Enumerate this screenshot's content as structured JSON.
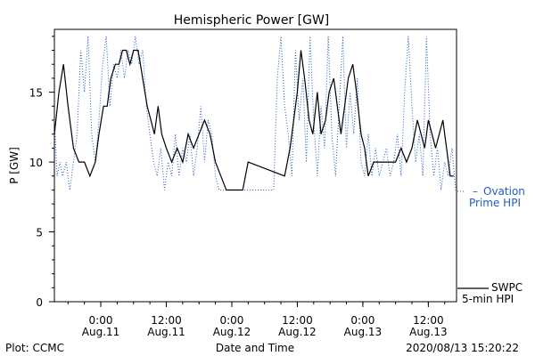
{
  "chart_data": {
    "type": "line",
    "title": "Hemispheric Power [GW]",
    "xlabel": "Date and Time",
    "ylabel": "P [GW]",
    "ylim": [
      0,
      19.5
    ],
    "xlim": [
      "2020-08-10 15:30",
      "2020-08-13 17:10"
    ],
    "y_ticks": [
      0,
      5,
      10,
      15
    ],
    "x_ticks": [
      {
        "time": "2020-08-11 00:00",
        "line1": "0:00",
        "line2": "Aug.11"
      },
      {
        "time": "2020-08-11 12:00",
        "line1": "12:00",
        "line2": "Aug.11"
      },
      {
        "time": "2020-08-12 00:00",
        "line1": "0:00",
        "line2": "Aug.12"
      },
      {
        "time": "2020-08-12 12:00",
        "line1": "12:00",
        "line2": "Aug.12"
      },
      {
        "time": "2020-08-13 00:00",
        "line1": "0:00",
        "line2": "Aug.13"
      },
      {
        "time": "2020-08-13 12:00",
        "line1": "12:00",
        "line2": "Aug.13"
      }
    ],
    "grid": false,
    "legend_position": "right",
    "series": [
      {
        "name": "SWPC 5-min HPI",
        "legend_line1": "SWPC",
        "legend_line2": "5-min HPI",
        "style": "solid",
        "color": "#000000",
        "points": [
          [
            "2020-08-10 15:30",
            12
          ],
          [
            "2020-08-10 16:20",
            15
          ],
          [
            "2020-08-10 17:10",
            17
          ],
          [
            "2020-08-10 18:00",
            14
          ],
          [
            "2020-08-10 19:00",
            11
          ],
          [
            "2020-08-10 20:00",
            10
          ],
          [
            "2020-08-10 21:00",
            10
          ],
          [
            "2020-08-10 22:00",
            9
          ],
          [
            "2020-08-10 23:00",
            10
          ],
          [
            "2020-08-10 23:40",
            12
          ],
          [
            "2020-08-11 00:30",
            14
          ],
          [
            "2020-08-11 01:10",
            14
          ],
          [
            "2020-08-11 01:50",
            16
          ],
          [
            "2020-08-11 02:40",
            17
          ],
          [
            "2020-08-11 03:20",
            17
          ],
          [
            "2020-08-11 04:00",
            18
          ],
          [
            "2020-08-11 04:40",
            18
          ],
          [
            "2020-08-11 05:20",
            17
          ],
          [
            "2020-08-11 06:00",
            18
          ],
          [
            "2020-08-11 06:50",
            18
          ],
          [
            "2020-08-11 07:40",
            16
          ],
          [
            "2020-08-11 08:30",
            14
          ],
          [
            "2020-08-11 09:10",
            13
          ],
          [
            "2020-08-11 09:50",
            12
          ],
          [
            "2020-08-11 10:30",
            14
          ],
          [
            "2020-08-11 11:10",
            12
          ],
          [
            "2020-08-11 12:00",
            11
          ],
          [
            "2020-08-11 13:00",
            10
          ],
          [
            "2020-08-11 14:00",
            11
          ],
          [
            "2020-08-11 15:00",
            10
          ],
          [
            "2020-08-11 16:00",
            12
          ],
          [
            "2020-08-11 17:00",
            11
          ],
          [
            "2020-08-11 18:00",
            12
          ],
          [
            "2020-08-11 19:00",
            13
          ],
          [
            "2020-08-11 20:00",
            12
          ],
          [
            "2020-08-11 21:00",
            10
          ],
          [
            "2020-08-11 22:00",
            9
          ],
          [
            "2020-08-11 23:00",
            8
          ],
          [
            "2020-08-12 00:00",
            8
          ],
          [
            "2020-08-12 01:00",
            8
          ],
          [
            "2020-08-12 02:00",
            8
          ],
          [
            "2020-08-12 03:00",
            10
          ],
          [
            "2020-08-12 09:40",
            9
          ],
          [
            "2020-08-12 10:40",
            11
          ],
          [
            "2020-08-12 11:20",
            13
          ],
          [
            "2020-08-12 12:00",
            15
          ],
          [
            "2020-08-12 12:40",
            18
          ],
          [
            "2020-08-12 13:20",
            16
          ],
          [
            "2020-08-12 14:10",
            13
          ],
          [
            "2020-08-12 14:50",
            12
          ],
          [
            "2020-08-12 15:40",
            15
          ],
          [
            "2020-08-12 16:20",
            12
          ],
          [
            "2020-08-12 17:10",
            13
          ],
          [
            "2020-08-12 17:50",
            15
          ],
          [
            "2020-08-12 18:40",
            16
          ],
          [
            "2020-08-12 19:20",
            14
          ],
          [
            "2020-08-12 20:00",
            12
          ],
          [
            "2020-08-12 20:40",
            14
          ],
          [
            "2020-08-12 21:20",
            16
          ],
          [
            "2020-08-12 22:10",
            17
          ],
          [
            "2020-08-12 22:50",
            15
          ],
          [
            "2020-08-12 23:40",
            12
          ],
          [
            "2020-08-13 00:20",
            11
          ],
          [
            "2020-08-13 01:00",
            9
          ],
          [
            "2020-08-13 02:00",
            10
          ],
          [
            "2020-08-13 03:00",
            10
          ],
          [
            "2020-08-13 04:00",
            10
          ],
          [
            "2020-08-13 05:00",
            10
          ],
          [
            "2020-08-13 06:00",
            10
          ],
          [
            "2020-08-13 07:00",
            11
          ],
          [
            "2020-08-13 08:00",
            10
          ],
          [
            "2020-08-13 09:00",
            11
          ],
          [
            "2020-08-13 10:00",
            13
          ],
          [
            "2020-08-13 10:40",
            12
          ],
          [
            "2020-08-13 11:20",
            11
          ],
          [
            "2020-08-13 12:00",
            13
          ],
          [
            "2020-08-13 12:40",
            12
          ],
          [
            "2020-08-13 13:20",
            11
          ],
          [
            "2020-08-13 14:00",
            12
          ],
          [
            "2020-08-13 14:40",
            13
          ],
          [
            "2020-08-13 15:20",
            11
          ],
          [
            "2020-08-13 16:00",
            9
          ],
          [
            "2020-08-13 16:40",
            9
          ]
        ]
      },
      {
        "name": "Ovation Prime HPI",
        "legend_line1": "Ovation",
        "legend_line2": "Prime HPI",
        "style": "dotted",
        "color": "#1f5fbf",
        "points": [
          [
            "2020-08-10 15:30",
            13
          ],
          [
            "2020-08-10 16:00",
            9
          ],
          [
            "2020-08-10 16:30",
            10
          ],
          [
            "2020-08-10 17:00",
            9
          ],
          [
            "2020-08-10 17:40",
            10
          ],
          [
            "2020-08-10 18:20",
            8
          ],
          [
            "2020-08-10 19:00",
            10
          ],
          [
            "2020-08-10 19:40",
            12
          ],
          [
            "2020-08-10 20:20",
            18
          ],
          [
            "2020-08-10 21:00",
            15
          ],
          [
            "2020-08-10 21:40",
            19
          ],
          [
            "2020-08-10 22:20",
            12
          ],
          [
            "2020-08-10 23:00",
            10
          ],
          [
            "2020-08-10 23:40",
            13
          ],
          [
            "2020-08-11 00:20",
            17
          ],
          [
            "2020-08-11 01:00",
            19
          ],
          [
            "2020-08-11 01:40",
            14
          ],
          [
            "2020-08-11 02:20",
            17
          ],
          [
            "2020-08-11 03:00",
            16
          ],
          [
            "2020-08-11 03:40",
            18
          ],
          [
            "2020-08-11 04:20",
            16
          ],
          [
            "2020-08-11 05:00",
            18
          ],
          [
            "2020-08-11 05:40",
            17
          ],
          [
            "2020-08-11 06:20",
            19
          ],
          [
            "2020-08-11 07:00",
            17
          ],
          [
            "2020-08-11 07:40",
            18
          ],
          [
            "2020-08-11 08:20",
            14
          ],
          [
            "2020-08-11 09:00",
            12
          ],
          [
            "2020-08-11 09:40",
            10
          ],
          [
            "2020-08-11 10:20",
            9
          ],
          [
            "2020-08-11 11:00",
            11
          ],
          [
            "2020-08-11 11:40",
            8
          ],
          [
            "2020-08-11 12:20",
            10
          ],
          [
            "2020-08-11 13:00",
            9
          ],
          [
            "2020-08-11 13:40",
            12
          ],
          [
            "2020-08-11 14:20",
            9
          ],
          [
            "2020-08-11 15:00",
            11
          ],
          [
            "2020-08-11 15:40",
            10
          ],
          [
            "2020-08-11 16:20",
            12
          ],
          [
            "2020-08-11 17:00",
            9
          ],
          [
            "2020-08-11 17:40",
            11
          ],
          [
            "2020-08-11 18:20",
            14
          ],
          [
            "2020-08-11 19:00",
            10
          ],
          [
            "2020-08-11 19:40",
            13
          ],
          [
            "2020-08-11 20:20",
            12
          ],
          [
            "2020-08-11 21:00",
            9
          ],
          [
            "2020-08-11 21:40",
            8
          ],
          [
            "2020-08-11 22:20",
            8
          ],
          [
            "2020-08-11 23:00",
            8
          ],
          [
            "2020-08-12 00:00",
            8
          ],
          [
            "2020-08-12 01:00",
            8
          ],
          [
            "2020-08-12 02:00",
            8
          ],
          [
            "2020-08-12 03:00",
            8
          ],
          [
            "2020-08-12 04:00",
            8
          ],
          [
            "2020-08-12 05:00",
            8
          ],
          [
            "2020-08-12 06:00",
            8
          ],
          [
            "2020-08-12 07:00",
            8
          ],
          [
            "2020-08-12 07:40",
            8
          ],
          [
            "2020-08-12 08:20",
            16
          ],
          [
            "2020-08-12 09:00",
            19
          ],
          [
            "2020-08-12 09:40",
            14
          ],
          [
            "2020-08-12 10:20",
            12
          ],
          [
            "2020-08-12 11:00",
            9
          ],
          [
            "2020-08-12 11:40",
            18
          ],
          [
            "2020-08-12 12:20",
            13
          ],
          [
            "2020-08-12 13:00",
            16
          ],
          [
            "2020-08-12 13:40",
            10
          ],
          [
            "2020-08-12 14:20",
            19
          ],
          [
            "2020-08-12 15:00",
            13
          ],
          [
            "2020-08-12 15:40",
            9
          ],
          [
            "2020-08-12 16:20",
            14
          ],
          [
            "2020-08-12 17:00",
            11
          ],
          [
            "2020-08-12 17:40",
            19
          ],
          [
            "2020-08-12 18:20",
            12
          ],
          [
            "2020-08-12 19:00",
            9
          ],
          [
            "2020-08-12 19:40",
            14
          ],
          [
            "2020-08-12 20:20",
            19
          ],
          [
            "2020-08-12 21:00",
            11
          ],
          [
            "2020-08-12 21:40",
            15
          ],
          [
            "2020-08-12 22:20",
            12
          ],
          [
            "2020-08-12 23:00",
            16
          ],
          [
            "2020-08-12 23:40",
            10
          ],
          [
            "2020-08-13 00:20",
            9
          ],
          [
            "2020-08-13 01:00",
            12
          ],
          [
            "2020-08-13 01:40",
            9
          ],
          [
            "2020-08-13 02:20",
            11
          ],
          [
            "2020-08-13 03:00",
            9
          ],
          [
            "2020-08-13 03:40",
            10
          ],
          [
            "2020-08-13 04:20",
            11
          ],
          [
            "2020-08-13 05:00",
            9
          ],
          [
            "2020-08-13 05:40",
            10
          ],
          [
            "2020-08-13 06:20",
            12
          ],
          [
            "2020-08-13 07:00",
            9
          ],
          [
            "2020-08-13 07:40",
            15
          ],
          [
            "2020-08-13 08:20",
            19
          ],
          [
            "2020-08-13 09:00",
            14
          ],
          [
            "2020-08-13 09:40",
            10
          ],
          [
            "2020-08-13 10:20",
            12
          ],
          [
            "2020-08-13 11:00",
            9
          ],
          [
            "2020-08-13 11:40",
            19
          ],
          [
            "2020-08-13 12:20",
            12
          ],
          [
            "2020-08-13 13:00",
            9
          ],
          [
            "2020-08-13 13:40",
            11
          ],
          [
            "2020-08-13 14:20",
            8
          ],
          [
            "2020-08-13 15:00",
            10
          ],
          [
            "2020-08-13 15:40",
            9
          ],
          [
            "2020-08-13 16:20",
            11
          ],
          [
            "2020-08-13 17:00",
            8
          ]
        ]
      }
    ]
  },
  "footer": {
    "left": "Plot: CCMC",
    "center": "Date and Time",
    "right": "2020/08/13 15:20:22"
  }
}
